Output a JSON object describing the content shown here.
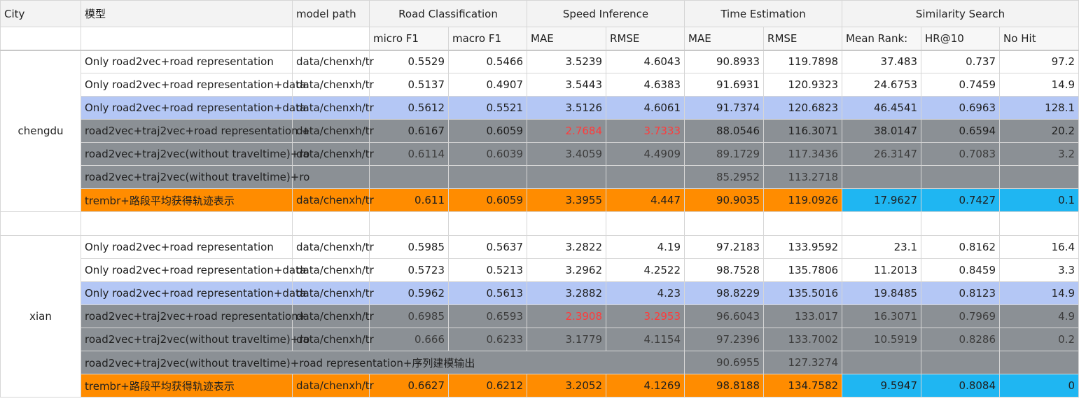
{
  "colors": {
    "default": "#ffffff",
    "blue": "#b4c7f5",
    "gray": "#8b9095",
    "orange": "#ff8c00",
    "cyan": "#1fb6f2",
    "red_text": "#ff3b3b",
    "gray_text": "#3a3a3a"
  },
  "header": {
    "city": "City",
    "model": "模型",
    "model_path": "model path",
    "groups": [
      "Road Classification",
      "Speed Inference",
      "Time Estimation",
      "Similarity Search"
    ],
    "subcols": [
      "micro F1",
      "macro F1",
      "MAE",
      "RMSE",
      "MAE",
      "RMSE",
      "Mean Rank:",
      "HR@10",
      "No Hit"
    ]
  },
  "sections": [
    {
      "city": "chengdu",
      "rows": [
        {
          "style": "default",
          "name": "Only road2vec+road representation",
          "path": "data/chenxh/tr",
          "values": [
            "0.5529",
            "0.5466",
            "3.5239",
            "4.6043",
            "90.8933",
            "119.7898",
            "37.483",
            "0.737",
            "97.2"
          ],
          "red": []
        },
        {
          "style": "default",
          "name": "Only road2vec+road representation+data",
          "path": "data/chenxh/tr",
          "values": [
            "0.5137",
            "0.4907",
            "3.5443",
            "4.6383",
            "91.6931",
            "120.9323",
            "24.6753",
            "0.7459",
            "14.9"
          ],
          "red": []
        },
        {
          "style": "blue",
          "name": "Only road2vec+road representation+data",
          "path": "data/chenxh/tr",
          "values": [
            "0.5612",
            "0.5521",
            "3.5126",
            "4.6061",
            "91.7374",
            "120.6823",
            "46.4541",
            "0.6963",
            "128.1"
          ],
          "red": []
        },
        {
          "style": "gray",
          "name": "road2vec+traj2vec+road representation +",
          "path": "data/chenxh/tr",
          "values": [
            "0.6167",
            "0.6059",
            "2.7684",
            "3.7333",
            "88.0546",
            "116.3071",
            "38.0147",
            "0.6594",
            "20.2"
          ],
          "red": [
            2,
            3
          ]
        },
        {
          "style": "graylight",
          "name": "road2vec+traj2vec(without traveltime)+ro",
          "path": "data/chenxh/tr",
          "values": [
            "0.6114",
            "0.6039",
            "3.4059",
            "4.4909",
            "89.1729",
            "117.3436",
            "26.3147",
            "0.7083",
            "3.2"
          ],
          "red": []
        },
        {
          "style": "graylight",
          "name": "road2vec+traj2vec(without traveltime)+ro",
          "path": "",
          "values": [
            "",
            "",
            "",
            "",
            "85.2952",
            "113.2718",
            "",
            "",
            ""
          ],
          "red": []
        },
        {
          "style": "orange",
          "name": "trembr+路段平均获得轨迹表示",
          "path": "data/chenxh/tr",
          "values": [
            "0.611",
            "0.6059",
            "3.3955",
            "4.447",
            "90.9035",
            "119.0926",
            "17.9627",
            "0.7427",
            "0.1"
          ],
          "red": [],
          "cyan": [
            6,
            7,
            8
          ]
        }
      ]
    },
    {
      "city": "xian",
      "rows": [
        {
          "style": "default",
          "name": "Only road2vec+road representation",
          "path": "data/chenxh/tr",
          "values": [
            "0.5985",
            "0.5637",
            "3.2822",
            "4.19",
            "97.2183",
            "133.9592",
            "23.1",
            "0.8162",
            "16.4"
          ],
          "red": []
        },
        {
          "style": "default",
          "name": "Only road2vec+road representation+data",
          "path": "data/chenxh/tr",
          "values": [
            "0.5723",
            "0.5213",
            "3.2962",
            "4.2522",
            "98.7528",
            "135.7806",
            "11.2013",
            "0.8459",
            "3.3"
          ],
          "red": []
        },
        {
          "style": "blue",
          "name": "Only road2vec+road representation+data",
          "path": "data/chenxh/tr",
          "values": [
            "0.5962",
            "0.5613",
            "3.2882",
            "4.23",
            "98.8229",
            "135.5016",
            "19.8485",
            "0.8123",
            "14.9"
          ],
          "red": []
        },
        {
          "style": "graylight",
          "name": "road2vec+traj2vec+road representation+",
          "path": "data/chenxh/tr",
          "values": [
            "0.6985",
            "0.6593",
            "2.3908",
            "3.2953",
            "96.6043",
            "133.017",
            "16.3071",
            "0.7969",
            "4.9"
          ],
          "red": [
            2,
            3
          ]
        },
        {
          "style": "graylight",
          "name": "road2vec+traj2vec(without traveltime)+ro",
          "path": "data/chenxh/tr",
          "values": [
            "0.666",
            "0.6233",
            "3.1779",
            "4.1154",
            "97.2396",
            "133.7002",
            "10.5919",
            "0.8286",
            "0.2"
          ],
          "red": []
        },
        {
          "style": "gray",
          "name": "road2vec+traj2vec(without traveltime)+road representation+序列建模输出",
          "path": "",
          "span": true,
          "values": [
            "",
            "",
            "",
            "",
            "90.6955",
            "127.3274",
            "",
            "",
            ""
          ],
          "red": []
        },
        {
          "style": "orange",
          "name": "trembr+路段平均获得轨迹表示",
          "path": "data/chenxh/tr",
          "values": [
            "0.6627",
            "0.6212",
            "3.2052",
            "4.1269",
            "98.8188",
            "134.7582",
            "9.5947",
            "0.8084",
            "0"
          ],
          "red": [],
          "cyan": [
            6,
            7,
            8
          ]
        }
      ]
    }
  ]
}
